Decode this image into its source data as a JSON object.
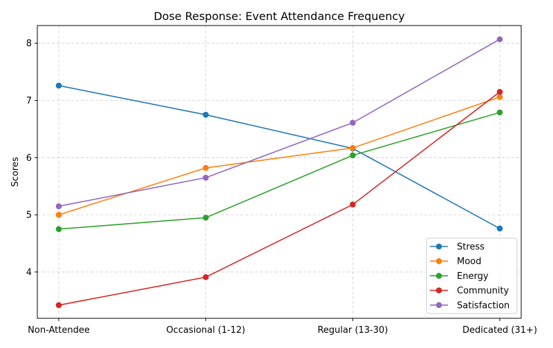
{
  "chart_data": {
    "type": "line",
    "title": "Dose Response: Event Attendance Frequency",
    "xlabel": "",
    "ylabel": "Scores",
    "categories": [
      "Non-Attendee",
      "Occasional (1-12)",
      "Regular (13-30)",
      "Dedicated (31+)"
    ],
    "ylim": [
      3.19,
      8.31
    ],
    "yticks": [
      4,
      5,
      6,
      7,
      8
    ],
    "grid": true,
    "legend_position": "lower-right",
    "series": [
      {
        "name": "Stress",
        "color": "#1f77b4",
        "values": [
          7.26,
          6.75,
          6.16,
          4.76
        ]
      },
      {
        "name": "Mood",
        "color": "#ff7f0e",
        "values": [
          5.0,
          5.82,
          6.17,
          7.06
        ]
      },
      {
        "name": "Energy",
        "color": "#2ca02c",
        "values": [
          4.75,
          4.95,
          6.04,
          6.79
        ]
      },
      {
        "name": "Community",
        "color": "#d62728",
        "values": [
          3.42,
          3.91,
          5.18,
          7.15
        ]
      },
      {
        "name": "Satisfaction",
        "color": "#9467bd",
        "values": [
          5.15,
          5.65,
          6.61,
          8.07
        ]
      }
    ]
  }
}
